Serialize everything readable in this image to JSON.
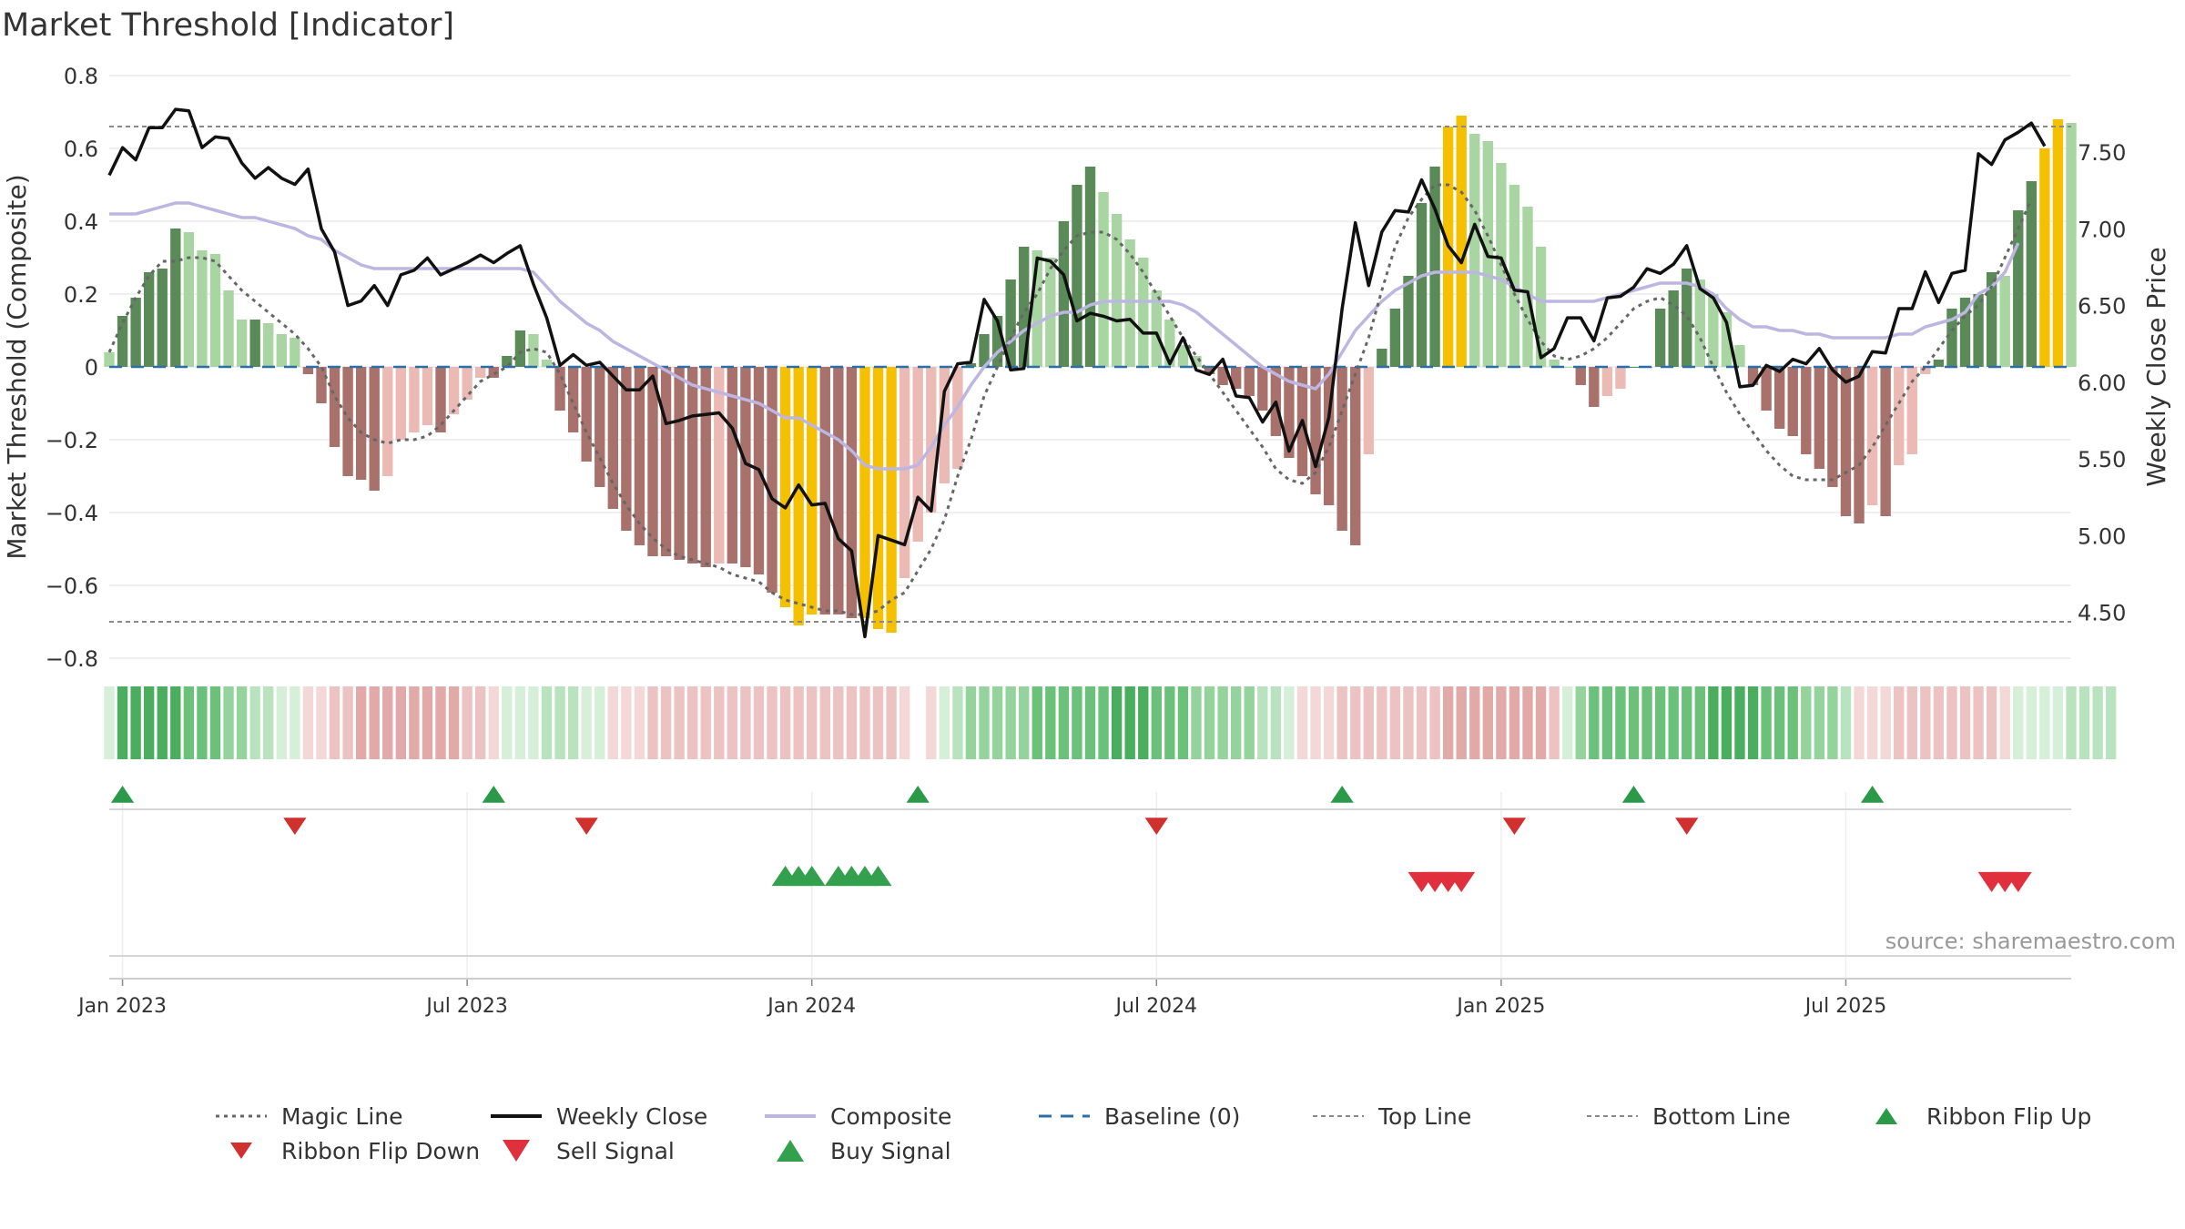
{
  "chart_data": {
    "type": "bar",
    "title": "Market Threshold [Indicator]",
    "ylabel": "Market Threshold (Composite)",
    "y2label": "Weekly Close Price",
    "ylim": [
      -0.8,
      0.8
    ],
    "y2lim": [
      4.2,
      8.0
    ],
    "yticks": [
      "0.8",
      "0.6",
      "0.4",
      "0.2",
      "0",
      "−0.2",
      "−0.4",
      "−0.6",
      "−0.8"
    ],
    "yticks_values": [
      0.8,
      0.6,
      0.4,
      0.2,
      0,
      -0.2,
      -0.4,
      -0.6,
      -0.8
    ],
    "y2ticks": [
      "7.50",
      "7.00",
      "6.50",
      "6.00",
      "5.50",
      "5.00",
      "4.50"
    ],
    "y2ticks_values": [
      7.5,
      7.0,
      6.5,
      6.0,
      5.5,
      5.0,
      4.5
    ],
    "xticks": [
      "Jan 2023",
      "Jul 2023",
      "Jan 2024",
      "Jul 2024",
      "Jan 2025",
      "Jul 2025"
    ],
    "xticks_weeks": [
      1,
      27,
      53,
      79,
      105,
      131
    ],
    "top_line": 0.66,
    "bottom_line": -0.7,
    "bars": [
      0.04,
      0.14,
      0.19,
      0.26,
      0.27,
      0.38,
      0.37,
      0.32,
      0.31,
      0.21,
      0.13,
      0.13,
      0.12,
      0.09,
      0.08,
      -0.02,
      -0.1,
      -0.22,
      -0.3,
      -0.31,
      -0.34,
      -0.3,
      -0.2,
      -0.18,
      -0.16,
      -0.18,
      -0.13,
      -0.09,
      -0.03,
      -0.03,
      0.03,
      0.1,
      0.09,
      0.02,
      -0.12,
      -0.18,
      -0.26,
      -0.33,
      -0.39,
      -0.45,
      -0.49,
      -0.52,
      -0.52,
      -0.53,
      -0.54,
      -0.55,
      -0.54,
      -0.54,
      -0.55,
      -0.57,
      -0.62,
      -0.66,
      -0.71,
      -0.68,
      -0.68,
      -0.68,
      -0.69,
      -0.69,
      -0.72,
      -0.73,
      -0.58,
      -0.48,
      -0.4,
      -0.32,
      -0.28,
      0.01,
      0.09,
      0.14,
      0.24,
      0.33,
      0.32,
      0.3,
      0.4,
      0.5,
      0.55,
      0.48,
      0.42,
      0.35,
      0.3,
      0.21,
      0.13,
      0.06,
      0.03,
      -0.02,
      -0.05,
      -0.06,
      -0.08,
      -0.12,
      -0.19,
      -0.25,
      -0.3,
      -0.35,
      -0.38,
      -0.45,
      -0.49,
      -0.24,
      0.05,
      0.16,
      0.25,
      0.45,
      0.55,
      0.66,
      0.69,
      0.64,
      0.62,
      0.56,
      0.5,
      0.44,
      0.33,
      0.02,
      0.0,
      -0.05,
      -0.11,
      -0.08,
      -0.06,
      0.0,
      0.0,
      0.16,
      0.21,
      0.27,
      0.24,
      0.2,
      0.15,
      0.06,
      -0.05,
      -0.12,
      -0.17,
      -0.19,
      -0.24,
      -0.28,
      -0.33,
      -0.41,
      -0.43,
      -0.38,
      -0.41,
      -0.27,
      -0.24,
      -0.02,
      0.02,
      0.16,
      0.19,
      0.2,
      0.26,
      0.25,
      0.43,
      0.51,
      0.6,
      0.68,
      0.67
    ],
    "gold_indices": [
      51,
      52,
      53,
      57,
      58,
      59,
      101,
      102,
      146,
      147
    ],
    "weekly_close": [
      7.35,
      7.53,
      7.45,
      7.66,
      7.66,
      7.78,
      7.77,
      7.53,
      7.6,
      7.59,
      7.43,
      7.33,
      7.4,
      7.33,
      7.29,
      7.39,
      7.0,
      6.85,
      6.5,
      6.53,
      6.63,
      6.5,
      6.7,
      6.73,
      6.81,
      6.7,
      6.74,
      6.78,
      6.83,
      6.78,
      6.84,
      6.89,
      6.64,
      6.42,
      6.11,
      6.18,
      6.11,
      6.13,
      6.04,
      5.95,
      5.95,
      6.04,
      5.73,
      5.75,
      5.78,
      5.79,
      5.8,
      5.7,
      5.47,
      5.43,
      5.24,
      5.18,
      5.33,
      5.2,
      5.21,
      4.98,
      4.9,
      4.34,
      5.0,
      4.97,
      4.94,
      5.25,
      5.16,
      5.94,
      6.12,
      6.13,
      6.54,
      6.4,
      6.08,
      6.09,
      6.81,
      6.79,
      6.7,
      6.4,
      6.45,
      6.43,
      6.4,
      6.41,
      6.32,
      6.32,
      6.12,
      6.29,
      6.08,
      6.05,
      6.15,
      5.91,
      5.9,
      5.74,
      5.87,
      5.55,
      5.75,
      5.45,
      5.77,
      6.48,
      7.04,
      6.63,
      6.98,
      7.12,
      7.11,
      7.32,
      7.13,
      6.89,
      6.78,
      7.03,
      6.82,
      6.81,
      6.6,
      6.59,
      6.16,
      6.22,
      6.42,
      6.42,
      6.27,
      6.55,
      6.56,
      6.62,
      6.74,
      6.71,
      6.77,
      6.89,
      6.61,
      6.55,
      6.39,
      5.97,
      5.98,
      6.11,
      6.07,
      6.15,
      6.12,
      6.22,
      6.08,
      6.0,
      6.04,
      6.2,
      6.19,
      6.48,
      6.48,
      6.72,
      6.52,
      6.71,
      6.73,
      7.49,
      7.42,
      7.58,
      7.63,
      7.69,
      7.54
    ],
    "composite": [
      0.42,
      0.42,
      0.42,
      0.43,
      0.44,
      0.45,
      0.45,
      0.44,
      0.43,
      0.42,
      0.41,
      0.41,
      0.4,
      0.39,
      0.38,
      0.36,
      0.35,
      0.32,
      0.3,
      0.28,
      0.27,
      0.27,
      0.27,
      0.27,
      0.27,
      0.27,
      0.27,
      0.27,
      0.27,
      0.27,
      0.27,
      0.27,
      0.26,
      0.22,
      0.18,
      0.15,
      0.12,
      0.1,
      0.07,
      0.05,
      0.03,
      0.01,
      -0.01,
      -0.03,
      -0.05,
      -0.06,
      -0.07,
      -0.08,
      -0.09,
      -0.1,
      -0.12,
      -0.14,
      -0.14,
      -0.16,
      -0.18,
      -0.2,
      -0.23,
      -0.27,
      -0.28,
      -0.28,
      -0.28,
      -0.27,
      -0.22,
      -0.16,
      -0.11,
      -0.05,
      0.0,
      0.04,
      0.07,
      0.1,
      0.12,
      0.14,
      0.15,
      0.15,
      0.17,
      0.18,
      0.18,
      0.18,
      0.18,
      0.18,
      0.18,
      0.17,
      0.15,
      0.12,
      0.09,
      0.06,
      0.03,
      0.0,
      -0.02,
      -0.04,
      -0.05,
      -0.06,
      -0.02,
      0.04,
      0.1,
      0.14,
      0.18,
      0.21,
      0.23,
      0.25,
      0.26,
      0.26,
      0.26,
      0.26,
      0.25,
      0.24,
      0.22,
      0.2,
      0.18,
      0.18,
      0.18,
      0.18,
      0.18,
      0.19,
      0.2,
      0.21,
      0.22,
      0.23,
      0.23,
      0.23,
      0.22,
      0.2,
      0.16,
      0.13,
      0.11,
      0.11,
      0.1,
      0.1,
      0.09,
      0.09,
      0.08,
      0.08,
      0.08,
      0.08,
      0.08,
      0.09,
      0.09,
      0.11,
      0.12,
      0.13,
      0.15,
      0.2,
      0.22,
      0.26,
      0.34
    ],
    "magic_line": [
      0.04,
      0.12,
      0.19,
      0.25,
      0.29,
      0.29,
      0.3,
      0.3,
      0.29,
      0.25,
      0.21,
      0.18,
      0.15,
      0.12,
      0.09,
      0.05,
      0.0,
      -0.08,
      -0.14,
      -0.18,
      -0.2,
      -0.21,
      -0.2,
      -0.2,
      -0.19,
      -0.16,
      -0.12,
      -0.08,
      -0.04,
      -0.02,
      0.0,
      0.04,
      0.05,
      0.04,
      -0.02,
      -0.1,
      -0.18,
      -0.25,
      -0.32,
      -0.38,
      -0.43,
      -0.47,
      -0.5,
      -0.52,
      -0.53,
      -0.54,
      -0.55,
      -0.57,
      -0.58,
      -0.59,
      -0.62,
      -0.64,
      -0.65,
      -0.66,
      -0.67,
      -0.67,
      -0.68,
      -0.68,
      -0.67,
      -0.64,
      -0.62,
      -0.56,
      -0.5,
      -0.42,
      -0.3,
      -0.2,
      -0.08,
      0.0,
      0.08,
      0.15,
      0.2,
      0.27,
      0.32,
      0.36,
      0.37,
      0.37,
      0.35,
      0.31,
      0.26,
      0.2,
      0.14,
      0.08,
      0.03,
      -0.02,
      -0.07,
      -0.12,
      -0.17,
      -0.22,
      -0.28,
      -0.31,
      -0.32,
      -0.29,
      -0.22,
      -0.12,
      -0.02,
      0.08,
      0.21,
      0.33,
      0.41,
      0.46,
      0.5,
      0.5,
      0.48,
      0.43,
      0.36,
      0.28,
      0.2,
      0.13,
      0.07,
      0.03,
      0.02,
      0.03,
      0.05,
      0.08,
      0.12,
      0.16,
      0.18,
      0.19,
      0.17,
      0.14,
      0.08,
      0.0,
      -0.07,
      -0.13,
      -0.18,
      -0.23,
      -0.27,
      -0.3,
      -0.31,
      -0.31,
      -0.31,
      -0.29,
      -0.27,
      -0.22,
      -0.16,
      -0.1,
      -0.04,
      0.0,
      0.05,
      0.1,
      0.14,
      0.17,
      0.22,
      0.3,
      0.38,
      0.46
    ],
    "ribbon_level": [
      1,
      5,
      5,
      5,
      5,
      5,
      4,
      4,
      4,
      3,
      3,
      2,
      2,
      1,
      1,
      -1,
      -1,
      -2,
      -2,
      -3,
      -3,
      -3,
      -3,
      -3,
      -3,
      -3,
      -3,
      -2,
      -2,
      -1,
      1,
      1,
      1,
      2,
      2,
      2,
      1,
      1,
      -1,
      -1,
      -1,
      -2,
      -2,
      -2,
      -2,
      -2,
      -2,
      -2,
      -2,
      -2,
      -2,
      -2,
      -2,
      -2,
      -2,
      -2,
      -2,
      -2,
      -2,
      -2,
      -1,
      0,
      -1,
      1,
      2,
      3,
      3,
      3,
      3,
      3,
      4,
      4,
      4,
      4,
      4,
      4,
      5,
      5,
      5,
      4,
      4,
      4,
      3,
      3,
      3,
      3,
      3,
      2,
      2,
      1,
      -1,
      -1,
      -1,
      -2,
      -2,
      -2,
      -2,
      -2,
      -2,
      -2,
      -2,
      -3,
      -3,
      -3,
      -3,
      -3,
      -3,
      -3,
      -3,
      -2,
      1,
      3,
      4,
      4,
      4,
      4,
      4,
      4,
      4,
      4,
      4,
      5,
      5,
      5,
      5,
      4,
      4,
      4,
      3,
      3,
      3,
      2,
      -1,
      -1,
      -1,
      -2,
      -2,
      -2,
      -2,
      -2,
      -2,
      -2,
      -2,
      -1,
      1,
      1,
      1,
      1,
      2,
      2,
      2,
      2
    ],
    "ribbon_flip_up": [
      1,
      29,
      61,
      93,
      115,
      133
    ],
    "ribbon_flip_down": [
      14,
      36,
      79,
      106,
      119
    ],
    "buy_signals": [
      51.0,
      52.0,
      53.0,
      55.0,
      56.0,
      57.0,
      58.0
    ],
    "sell_signals": [
      99.0,
      100.0,
      101.0,
      102.0,
      142.0,
      143.0,
      144.0
    ],
    "colors": {
      "bull_strong": "#5a8a57",
      "bull_weak": "#a8d5a2",
      "bear_strong": "#a8716b",
      "bear_weak": "#ebbab5",
      "extreme": "#f5c000",
      "weekly_close": "#111111",
      "composite": "#bdb6e3",
      "magic_line": "#666666",
      "baseline": "#2a6fa8",
      "threshold_line": "#888888",
      "flip_up": "#2a9a48",
      "flip_down": "#d0302e",
      "buy": "#33a04e",
      "sell": "#e0303e",
      "ribbon_green": [
        "#d6efd9",
        "#b9e3be",
        "#94d39c",
        "#6cc17a",
        "#4aae5e"
      ],
      "ribbon_red": [
        "#f4d8d8",
        "#ecc2c2",
        "#e2a9a9",
        "#d79797"
      ]
    }
  },
  "legend": {
    "magic_line": "Magic Line",
    "weekly_close": "Weekly Close",
    "composite": "Composite",
    "baseline": "Baseline (0)",
    "top_line": "Top Line",
    "bottom_line": "Bottom Line",
    "ribbon_flip_up": "Ribbon Flip Up",
    "ribbon_flip_down": "Ribbon Flip Down",
    "sell_signal": "Sell Signal",
    "buy_signal": "Buy Signal"
  },
  "source": "source: sharemaestro.com"
}
